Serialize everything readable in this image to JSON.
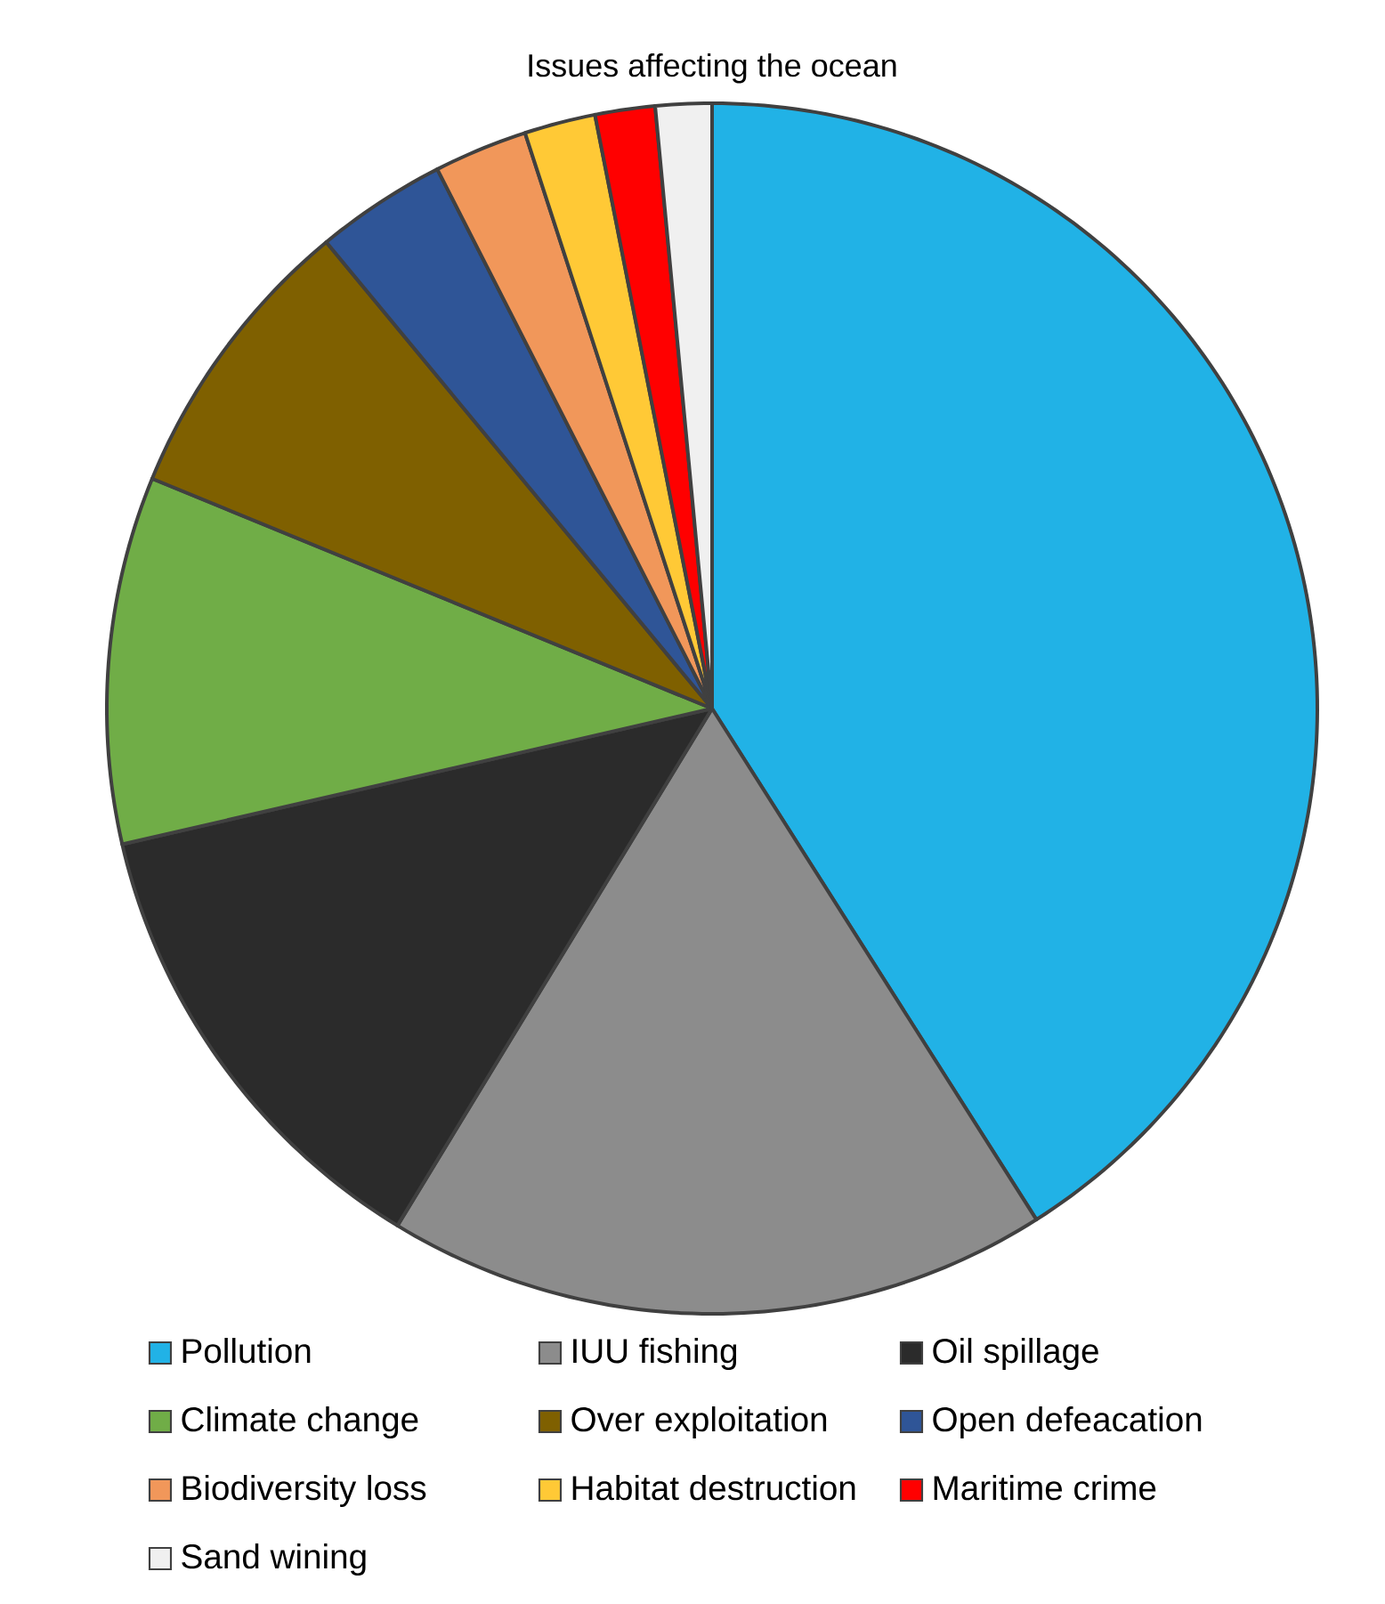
{
  "chart_data": {
    "type": "pie",
    "title": "Issues affecting the ocean",
    "categories": [
      "Pollution",
      "IUU fishing",
      "Oil spillage",
      "Climate change",
      "Over exploitation",
      "Open defeacation",
      "Biodiversity loss",
      "Habitat destruction",
      "Maritime crime",
      "Sand wining"
    ],
    "values": [
      41,
      17.7,
      12.7,
      9.8,
      7.8,
      3.5,
      2.5,
      1.9,
      1.6,
      1.5
    ],
    "colors": [
      "#21b2e6",
      "#8c8c8c",
      "#2b2b2b",
      "#70ad47",
      "#7f6000",
      "#2f5597",
      "#f1975a",
      "#ffc936",
      "#ff0000",
      "#f0f0f0"
    ],
    "legend": "bottom"
  }
}
